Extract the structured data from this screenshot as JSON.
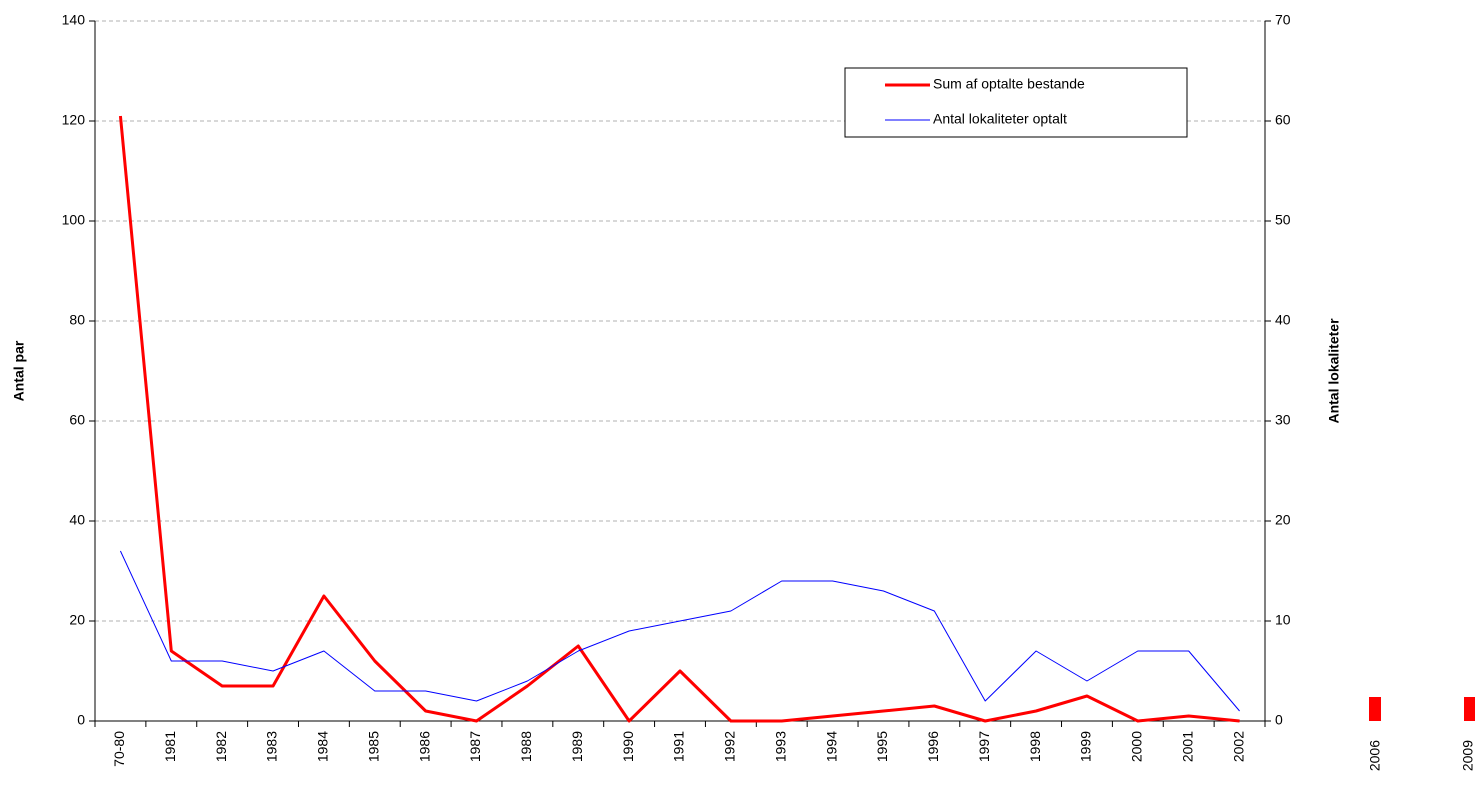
{
  "chart_data": {
    "type": "line",
    "y_label": "Antal par",
    "y2_label": "Antal lokaliteter",
    "categories": [
      "70-80",
      "1981",
      "1982",
      "1983",
      "1984",
      "1985",
      "1986",
      "1987",
      "1988",
      "1989",
      "1990",
      "1991",
      "1992",
      "1993",
      "1994",
      "1995",
      "1996",
      "1997",
      "1998",
      "1999",
      "2000",
      "2001",
      "2002"
    ],
    "series": [
      {
        "name": "Sum af optalte bestande",
        "color": "#ff0000",
        "values": [
          121,
          14,
          7,
          7,
          25,
          12,
          2,
          0,
          7,
          15,
          0,
          10,
          0,
          0,
          1,
          2,
          3,
          0,
          2,
          5,
          0,
          1,
          0
        ]
      },
      {
        "name": "Antal lokaliteter optalt",
        "color": "#0000ff",
        "axis": "y2",
        "values": [
          17,
          6,
          6,
          5,
          7,
          3,
          3,
          2,
          4,
          7,
          9,
          10,
          11,
          14,
          14,
          13,
          11,
          2,
          7,
          4,
          7,
          7,
          1
        ]
      }
    ],
    "ylim": [
      0,
      140
    ],
    "yticks": [
      0,
      20,
      40,
      60,
      80,
      100,
      120,
      140
    ],
    "y2lim": [
      0,
      70
    ],
    "y2ticks": [
      0,
      10,
      20,
      30,
      40,
      50,
      60,
      70
    ],
    "grid": true,
    "legend": "top-right",
    "annotations": [
      "2006",
      "2009"
    ]
  }
}
